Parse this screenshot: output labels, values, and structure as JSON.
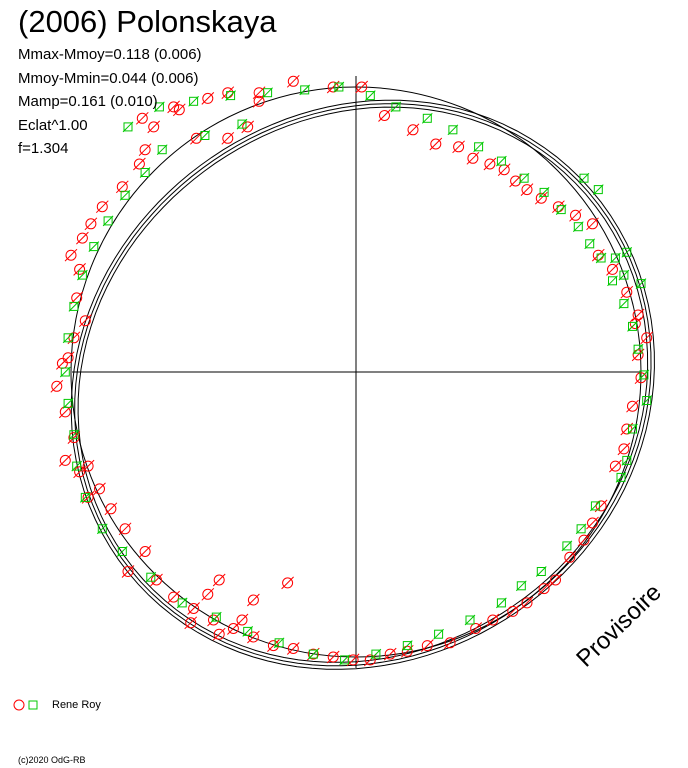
{
  "title": "(2006) Polonskaya",
  "stats": {
    "line1": "Mmax-Mmoy=0.118 (0.006)",
    "line2": "Mmoy-Mmin=0.044 (0.006)",
    "line3": "Mamp=0.161 (0.010)",
    "line4": "Eclat^1.00",
    "line5": "f=1.304"
  },
  "watermark": "Provisoire",
  "legend": {
    "label": "Rene Roy"
  },
  "copyright": "(c)2020 OdG-RB",
  "colors": {
    "red": "#ff0000",
    "green": "#00c800",
    "black": "#000000"
  },
  "chart_data": {
    "type": "polar-scatter",
    "reference_circle_radius": 1.0,
    "series": [
      {
        "name": "Rene Roy",
        "marker": "circle",
        "color": "#ff0000",
        "points": [
          [
            -0.75,
            0.89
          ],
          [
            -0.71,
            0.86
          ],
          [
            -0.64,
            0.93
          ],
          [
            -0.52,
            0.96
          ],
          [
            -0.45,
            0.98
          ],
          [
            -0.34,
            0.98
          ],
          [
            -0.22,
            1.02
          ],
          [
            -0.08,
            1.0
          ],
          [
            0.02,
            1.0
          ],
          [
            -0.74,
            0.78
          ],
          [
            -0.56,
            0.82
          ],
          [
            -0.45,
            0.82
          ],
          [
            -0.38,
            0.86
          ],
          [
            -0.34,
            0.95
          ],
          [
            -0.62,
            0.92
          ],
          [
            0.1,
            0.9
          ],
          [
            0.2,
            0.85
          ],
          [
            0.28,
            0.8
          ],
          [
            0.36,
            0.79
          ],
          [
            0.41,
            0.75
          ],
          [
            0.47,
            0.73
          ],
          [
            0.52,
            0.71
          ],
          [
            0.56,
            0.67
          ],
          [
            0.6,
            0.64
          ],
          [
            0.65,
            0.61
          ],
          [
            0.71,
            0.58
          ],
          [
            0.77,
            0.55
          ],
          [
            0.83,
            0.52
          ],
          [
            0.98,
            0.17
          ],
          [
            0.99,
            0.06
          ],
          [
            1.0,
            -0.02
          ],
          [
            0.97,
            -0.12
          ],
          [
            0.95,
            -0.2
          ],
          [
            0.94,
            -0.27
          ],
          [
            0.91,
            -0.33
          ],
          [
            0.85,
            0.41
          ],
          [
            0.9,
            0.36
          ],
          [
            0.95,
            0.28
          ],
          [
            0.99,
            0.2
          ],
          [
            1.02,
            0.12
          ],
          [
            0.86,
            -0.47
          ],
          [
            0.83,
            -0.53
          ],
          [
            0.8,
            -0.59
          ],
          [
            0.75,
            -0.65
          ],
          [
            0.7,
            -0.73
          ],
          [
            0.66,
            -0.76
          ],
          [
            0.6,
            -0.81
          ],
          [
            0.55,
            -0.84
          ],
          [
            0.48,
            -0.87
          ],
          [
            0.42,
            -0.9
          ],
          [
            0.33,
            -0.95
          ],
          [
            0.25,
            -0.96
          ],
          [
            0.18,
            -0.98
          ],
          [
            0.12,
            -0.99
          ],
          [
            0.05,
            -1.01
          ],
          [
            -0.01,
            -1.01
          ],
          [
            -0.08,
            -1.0
          ],
          [
            -0.15,
            -0.99
          ],
          [
            -0.22,
            -0.97
          ],
          [
            -0.29,
            -0.96
          ],
          [
            -0.36,
            -0.93
          ],
          [
            -0.43,
            -0.9
          ],
          [
            -0.5,
            -0.87
          ],
          [
            -0.57,
            -0.83
          ],
          [
            -0.64,
            -0.79
          ],
          [
            -0.7,
            -0.73
          ],
          [
            -0.4,
            -0.87
          ],
          [
            -0.48,
            -0.92
          ],
          [
            -0.58,
            -0.88
          ],
          [
            -0.36,
            -0.8
          ],
          [
            -0.24,
            -0.74
          ],
          [
            -0.48,
            -0.73
          ],
          [
            -0.52,
            -0.78
          ],
          [
            -0.81,
            -0.55
          ],
          [
            -0.86,
            -0.48
          ],
          [
            -0.9,
            -0.41
          ],
          [
            -0.94,
            -0.33
          ],
          [
            -0.99,
            -0.23
          ],
          [
            -1.02,
            -0.14
          ],
          [
            -1.05,
            -0.05
          ],
          [
            -1.03,
            0.03
          ],
          [
            -0.97,
            0.36
          ],
          [
            -0.98,
            0.26
          ],
          [
            -0.95,
            0.18
          ],
          [
            -0.99,
            0.12
          ],
          [
            -1.01,
            0.05
          ],
          [
            -1.0,
            0.41
          ],
          [
            -0.96,
            0.47
          ],
          [
            -0.93,
            0.52
          ],
          [
            -0.89,
            0.58
          ],
          [
            -0.82,
            0.65
          ],
          [
            -0.76,
            0.73
          ],
          [
            -1.02,
            -0.31
          ],
          [
            -0.97,
            -0.35
          ],
          [
            -0.94,
            -0.44
          ],
          [
            -0.74,
            -0.63
          ],
          [
            -0.8,
            -0.7
          ]
        ]
      },
      {
        "name": "Rene Roy",
        "marker": "square",
        "color": "#00c800",
        "points": [
          [
            -0.8,
            0.86
          ],
          [
            -0.69,
            0.93
          ],
          [
            -0.57,
            0.95
          ],
          [
            -0.44,
            0.97
          ],
          [
            -0.31,
            0.98
          ],
          [
            -0.18,
            0.99
          ],
          [
            -0.06,
            1.0
          ],
          [
            0.05,
            0.97
          ],
          [
            0.14,
            0.93
          ],
          [
            0.25,
            0.89
          ],
          [
            0.34,
            0.85
          ],
          [
            0.43,
            0.79
          ],
          [
            0.51,
            0.74
          ],
          [
            0.59,
            0.68
          ],
          [
            0.66,
            0.63
          ],
          [
            0.72,
            0.57
          ],
          [
            0.78,
            0.51
          ],
          [
            0.82,
            0.45
          ],
          [
            0.86,
            0.4
          ],
          [
            0.9,
            0.32
          ],
          [
            0.94,
            0.24
          ],
          [
            0.97,
            0.16
          ],
          [
            0.99,
            0.08
          ],
          [
            1.01,
            -0.01
          ],
          [
            1.02,
            -0.1
          ],
          [
            0.97,
            -0.2
          ],
          [
            0.95,
            -0.31
          ],
          [
            0.93,
            -0.37
          ],
          [
            0.84,
            -0.47
          ],
          [
            0.79,
            -0.55
          ],
          [
            0.74,
            -0.61
          ],
          [
            0.65,
            -0.7
          ],
          [
            0.58,
            -0.75
          ],
          [
            0.51,
            -0.81
          ],
          [
            0.4,
            -0.87
          ],
          [
            0.29,
            -0.92
          ],
          [
            0.18,
            -0.96
          ],
          [
            0.07,
            -0.99
          ],
          [
            -0.04,
            -1.01
          ],
          [
            -0.15,
            -0.99
          ],
          [
            -0.27,
            -0.95
          ],
          [
            -0.38,
            -0.91
          ],
          [
            -0.49,
            -0.86
          ],
          [
            -0.61,
            -0.81
          ],
          [
            -0.72,
            -0.72
          ],
          [
            -0.82,
            -0.63
          ],
          [
            -0.89,
            -0.55
          ],
          [
            -0.95,
            -0.44
          ],
          [
            -0.98,
            -0.33
          ],
          [
            -0.99,
            -0.22
          ],
          [
            -1.01,
            -0.11
          ],
          [
            -1.02,
            0.0
          ],
          [
            -1.01,
            0.12
          ],
          [
            -0.99,
            0.23
          ],
          [
            -0.96,
            0.34
          ],
          [
            -0.92,
            0.44
          ],
          [
            -0.87,
            0.53
          ],
          [
            -0.81,
            0.62
          ],
          [
            -0.74,
            0.7
          ],
          [
            -0.68,
            0.78
          ],
          [
            -0.53,
            0.83
          ],
          [
            -0.4,
            0.87
          ],
          [
            0.85,
            0.64
          ],
          [
            0.8,
            0.68
          ],
          [
            0.95,
            0.42
          ],
          [
            1.0,
            0.31
          ],
          [
            0.94,
            0.34
          ],
          [
            0.91,
            0.4
          ]
        ]
      }
    ]
  }
}
